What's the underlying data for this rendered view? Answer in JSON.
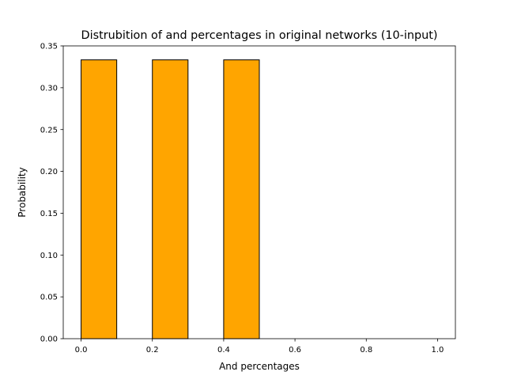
{
  "chart_data": {
    "type": "bar",
    "title": "Distrubition of and percentages in original networks (10-input)",
    "xlabel": "And percentages",
    "ylabel": "Probability",
    "xlim": [
      -0.05,
      1.05
    ],
    "ylim": [
      0.0,
      0.35
    ],
    "bar_color": "#ffa500",
    "bar_edge_color": "#000000",
    "bars": [
      {
        "x0": 0.0,
        "x1": 0.1,
        "value": 0.3333
      },
      {
        "x0": 0.2,
        "x1": 0.3,
        "value": 0.3333
      },
      {
        "x0": 0.4,
        "x1": 0.5,
        "value": 0.3333
      }
    ],
    "x_ticks": [
      {
        "value": 0.0,
        "label": "0.0"
      },
      {
        "value": 0.2,
        "label": "0.2"
      },
      {
        "value": 0.4,
        "label": "0.4"
      },
      {
        "value": 0.6,
        "label": "0.6"
      },
      {
        "value": 0.8,
        "label": "0.8"
      },
      {
        "value": 1.0,
        "label": "1.0"
      }
    ],
    "y_ticks": [
      {
        "value": 0.0,
        "label": "0.00"
      },
      {
        "value": 0.05,
        "label": "0.05"
      },
      {
        "value": 0.1,
        "label": "0.10"
      },
      {
        "value": 0.15,
        "label": "0.15"
      },
      {
        "value": 0.2,
        "label": "0.20"
      },
      {
        "value": 0.25,
        "label": "0.25"
      },
      {
        "value": 0.3,
        "label": "0.30"
      },
      {
        "value": 0.35,
        "label": "0.35"
      }
    ],
    "grid": false,
    "legend": "none"
  }
}
